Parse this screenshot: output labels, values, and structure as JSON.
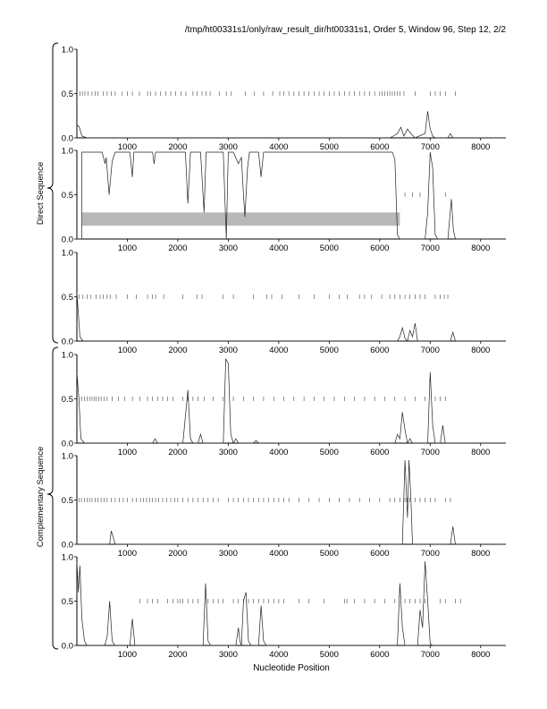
{
  "header": "/tmp/ht00331s1/only/raw_result_dir/ht00331s1, Order 5, Window 96, Step 12, 2/2",
  "group_labels": [
    "Direct Sequence",
    "Complementary Sequence"
  ],
  "xlabel": "Nucleotide Position",
  "colors": {
    "trace": "#222222",
    "ticks": "#444444",
    "shade": "#b8b8b8",
    "frame": "#000000"
  },
  "chart_data": [
    {
      "type": "line",
      "group": "Direct Sequence",
      "frame": 1,
      "xlim": [
        0,
        8500
      ],
      "ylim": [
        0,
        1
      ],
      "xticks": [
        1000,
        2000,
        3000,
        4000,
        5000,
        6000,
        7000,
        8000
      ],
      "yticks": [
        "0.0",
        "0.5",
        "1.0"
      ],
      "series": [
        {
          "points": [
            [
              0,
              0.15
            ],
            [
              50,
              0.12
            ],
            [
              100,
              0.02
            ],
            [
              200,
              0
            ],
            [
              6200,
              0
            ],
            [
              6300,
              0.03
            ],
            [
              6350,
              0.05
            ],
            [
              6420,
              0.12
            ],
            [
              6480,
              0.02
            ],
            [
              6550,
              0.1
            ],
            [
              6600,
              0.06
            ],
            [
              6650,
              0.03
            ],
            [
              6700,
              0
            ],
            [
              6900,
              0.05
            ],
            [
              6950,
              0.3
            ],
            [
              7000,
              0.1
            ],
            [
              7050,
              0.02
            ],
            [
              7100,
              0
            ],
            [
              7350,
              0
            ],
            [
              7400,
              0.05
            ],
            [
              7450,
              0
            ],
            [
              8500,
              0
            ]
          ]
        }
      ],
      "marker_positions": [
        60,
        110,
        160,
        220,
        300,
        360,
        420,
        520,
        600,
        680,
        760,
        900,
        1000,
        1100,
        1240,
        1400,
        1460,
        1560,
        1660,
        1760,
        1860,
        1960,
        2060,
        2160,
        2300,
        2380,
        2480,
        2560,
        2640,
        2820,
        2960,
        3060,
        3340,
        3520,
        3700,
        3880,
        4020,
        4100,
        4200,
        4300,
        4400,
        4500,
        4600,
        4700,
        4800,
        4900,
        5000,
        5100,
        5200,
        5300,
        5400,
        5500,
        5600,
        5700,
        5800,
        5900,
        6000,
        6050,
        6100,
        6150,
        6200,
        6250,
        6300,
        6350,
        6400,
        6480,
        6700,
        7000,
        7100,
        7200,
        7300,
        7500
      ]
    },
    {
      "type": "line",
      "group": "Direct Sequence",
      "frame": 2,
      "xlim": [
        0,
        8500
      ],
      "ylim": [
        0,
        1
      ],
      "xticks": [
        1000,
        2000,
        3000,
        4000,
        5000,
        6000,
        7000,
        8000
      ],
      "yticks": [
        "0.0",
        "0.5",
        "1.0"
      ],
      "shaded_band": {
        "x": [
          100,
          6400
        ],
        "y": [
          0.15,
          0.3
        ]
      },
      "series": [
        {
          "points": [
            [
              0,
              0
            ],
            [
              100,
              0
            ],
            [
              100,
              0.98
            ],
            [
              500,
              0.98
            ],
            [
              560,
              0.85
            ],
            [
              580,
              0.92
            ],
            [
              640,
              0.5
            ],
            [
              700,
              0.88
            ],
            [
              760,
              0.98
            ],
            [
              1050,
              0.98
            ],
            [
              1100,
              0.7
            ],
            [
              1130,
              0.98
            ],
            [
              1500,
              0.98
            ],
            [
              1530,
              0.85
            ],
            [
              1560,
              0.98
            ],
            [
              2150,
              0.98
            ],
            [
              2200,
              0.4
            ],
            [
              2250,
              0.98
            ],
            [
              2450,
              0.98
            ],
            [
              2520,
              0.3
            ],
            [
              2560,
              0.98
            ],
            [
              2900,
              0.98
            ],
            [
              2960,
              0
            ],
            [
              3000,
              0.98
            ],
            [
              3100,
              0.98
            ],
            [
              3200,
              0.85
            ],
            [
              3260,
              0.92
            ],
            [
              3300,
              0.5
            ],
            [
              3330,
              0.25
            ],
            [
              3380,
              0.8
            ],
            [
              3420,
              0.98
            ],
            [
              3600,
              0.98
            ],
            [
              3650,
              0.7
            ],
            [
              3700,
              0.98
            ],
            [
              6250,
              0.98
            ],
            [
              6300,
              0.9
            ],
            [
              6350,
              0.05
            ],
            [
              6400,
              0
            ],
            [
              6900,
              0
            ],
            [
              6950,
              0.3
            ],
            [
              7000,
              0.98
            ],
            [
              7050,
              0.8
            ],
            [
              7100,
              0.05
            ],
            [
              7150,
              0
            ],
            [
              7350,
              0
            ],
            [
              7420,
              0.45
            ],
            [
              7460,
              0.1
            ],
            [
              7500,
              0
            ],
            [
              8500,
              0
            ]
          ]
        }
      ],
      "marker_positions": [
        6500,
        6650,
        6800,
        7300
      ]
    },
    {
      "type": "line",
      "group": "Direct Sequence",
      "frame": 3,
      "xlim": [
        0,
        8500
      ],
      "ylim": [
        0,
        1
      ],
      "xticks": [
        1000,
        2000,
        3000,
        4000,
        5000,
        6000,
        7000,
        8000
      ],
      "yticks": [
        "0.0",
        "0.5",
        "1.0"
      ],
      "series": [
        {
          "points": [
            [
              0,
              0.55
            ],
            [
              30,
              0.3
            ],
            [
              60,
              0.05
            ],
            [
              120,
              0
            ],
            [
              6350,
              0
            ],
            [
              6400,
              0.05
            ],
            [
              6450,
              0.15
            ],
            [
              6500,
              0.03
            ],
            [
              6550,
              0
            ],
            [
              6600,
              0.12
            ],
            [
              6650,
              0.05
            ],
            [
              6700,
              0.2
            ],
            [
              6750,
              0
            ],
            [
              7400,
              0
            ],
            [
              7450,
              0.1
            ],
            [
              7500,
              0
            ],
            [
              8500,
              0
            ]
          ]
        }
      ],
      "marker_positions": [
        40,
        120,
        200,
        280,
        380,
        460,
        520,
        600,
        660,
        780,
        1000,
        1180,
        1400,
        1500,
        1560,
        1720,
        2100,
        2380,
        2480,
        2900,
        3100,
        3500,
        3760,
        3860,
        4060,
        4400,
        4700,
        5000,
        5200,
        5360,
        5600,
        5700,
        5840,
        6040,
        6200,
        6300,
        6400,
        6500,
        6600,
        6700,
        6800,
        6900,
        7100,
        7200,
        7280,
        7350
      ]
    },
    {
      "type": "line",
      "group": "Complementary Sequence",
      "frame": 4,
      "xlim": [
        0,
        8500
      ],
      "ylim": [
        0,
        1
      ],
      "xticks": [
        1000,
        2000,
        3000,
        4000,
        5000,
        6000,
        7000,
        8000
      ],
      "yticks": [
        "0.0",
        "0.5",
        "1.0"
      ],
      "series": [
        {
          "points": [
            [
              0,
              0.8
            ],
            [
              40,
              0.5
            ],
            [
              80,
              0.05
            ],
            [
              150,
              0
            ],
            [
              1500,
              0
            ],
            [
              1550,
              0.05
            ],
            [
              1600,
              0
            ],
            [
              2100,
              0
            ],
            [
              2150,
              0.3
            ],
            [
              2200,
              0.6
            ],
            [
              2250,
              0.05
            ],
            [
              2300,
              0
            ],
            [
              2400,
              0
            ],
            [
              2450,
              0.1
            ],
            [
              2500,
              0
            ],
            [
              2900,
              0
            ],
            [
              2950,
              0.95
            ],
            [
              3000,
              0.9
            ],
            [
              3050,
              0.1
            ],
            [
              3100,
              0
            ],
            [
              3150,
              0.05
            ],
            [
              3200,
              0
            ],
            [
              3500,
              0
            ],
            [
              3550,
              0.03
            ],
            [
              3600,
              0
            ],
            [
              6300,
              0
            ],
            [
              6350,
              0.1
            ],
            [
              6400,
              0.05
            ],
            [
              6450,
              0.35
            ],
            [
              6500,
              0.15
            ],
            [
              6550,
              0
            ],
            [
              6600,
              0.05
            ],
            [
              6650,
              0
            ],
            [
              6950,
              0
            ],
            [
              7000,
              0.8
            ],
            [
              7050,
              0.2
            ],
            [
              7100,
              0
            ],
            [
              7200,
              0
            ],
            [
              7250,
              0.2
            ],
            [
              7300,
              0
            ],
            [
              8500,
              0
            ]
          ]
        }
      ],
      "marker_positions": [
        100,
        150,
        200,
        260,
        300,
        340,
        380,
        430,
        480,
        540,
        600,
        700,
        820,
        950,
        1100,
        1250,
        1400,
        1500,
        1600,
        1700,
        1800,
        1900,
        2100,
        2200,
        2300,
        2400,
        2520,
        2700,
        2900,
        3100,
        3300,
        3500,
        3700,
        3900,
        4100,
        4300,
        4500,
        4700,
        4900,
        5100,
        5300,
        5500,
        5700,
        5900,
        6100,
        6300,
        6500,
        6700,
        6900,
        7100,
        7200,
        7300
      ]
    },
    {
      "type": "line",
      "group": "Complementary Sequence",
      "frame": 5,
      "xlim": [
        0,
        8500
      ],
      "ylim": [
        0,
        1
      ],
      "xticks": [
        1000,
        2000,
        3000,
        4000,
        5000,
        6000,
        7000,
        8000
      ],
      "yticks": [
        "0.0",
        "0.5",
        "1.0"
      ],
      "series": [
        {
          "points": [
            [
              0,
              0
            ],
            [
              650,
              0
            ],
            [
              680,
              0.15
            ],
            [
              720,
              0.08
            ],
            [
              760,
              0
            ],
            [
              6450,
              0
            ],
            [
              6500,
              0.95
            ],
            [
              6550,
              0.3
            ],
            [
              6580,
              0.95
            ],
            [
              6620,
              0.5
            ],
            [
              6650,
              0
            ],
            [
              7400,
              0
            ],
            [
              7450,
              0.2
            ],
            [
              7500,
              0
            ],
            [
              8500,
              0
            ]
          ]
        }
      ],
      "marker_positions": [
        40,
        90,
        150,
        200,
        250,
        300,
        360,
        420,
        480,
        540,
        600,
        680,
        760,
        840,
        920,
        1000,
        1100,
        1180,
        1260,
        1320,
        1380,
        1440,
        1500,
        1560,
        1620,
        1700,
        1780,
        1860,
        1940,
        2000,
        2100,
        2200,
        2300,
        2400,
        2500,
        2600,
        2700,
        2800,
        3000,
        3100,
        3200,
        3300,
        3400,
        3500,
        3600,
        3700,
        3800,
        3900,
        4000,
        4100,
        4200,
        4400,
        4600,
        4800,
        5000,
        5200,
        5400,
        5600,
        5800,
        6000,
        6200,
        6300,
        6400,
        6500,
        6550,
        6600,
        6700,
        6800,
        6900,
        7000,
        7100,
        7300,
        7400
      ]
    },
    {
      "type": "line",
      "group": "Complementary Sequence",
      "frame": 6,
      "xlim": [
        0,
        8500
      ],
      "ylim": [
        0,
        1
      ],
      "xticks": [
        1000,
        2000,
        3000,
        4000,
        5000,
        6000,
        7000,
        8000
      ],
      "yticks": [
        "0.0",
        "0.5",
        "1.0"
      ],
      "series": [
        {
          "points": [
            [
              0,
              0.95
            ],
            [
              30,
              0.6
            ],
            [
              60,
              0.9
            ],
            [
              100,
              0.3
            ],
            [
              150,
              0.05
            ],
            [
              200,
              0
            ],
            [
              550,
              0
            ],
            [
              600,
              0.1
            ],
            [
              650,
              0.5
            ],
            [
              700,
              0.05
            ],
            [
              750,
              0
            ],
            [
              1050,
              0
            ],
            [
              1100,
              0.3
            ],
            [
              1150,
              0
            ],
            [
              2500,
              0
            ],
            [
              2550,
              0.7
            ],
            [
              2600,
              0.05
            ],
            [
              2650,
              0
            ],
            [
              3150,
              0
            ],
            [
              3200,
              0.2
            ],
            [
              3230,
              0.05
            ],
            [
              3260,
              0
            ],
            [
              3300,
              0.5
            ],
            [
              3350,
              0.6
            ],
            [
              3400,
              0.05
            ],
            [
              3450,
              0
            ],
            [
              3600,
              0
            ],
            [
              3650,
              0.45
            ],
            [
              3700,
              0.05
            ],
            [
              3750,
              0
            ],
            [
              6350,
              0
            ],
            [
              6400,
              0.7
            ],
            [
              6450,
              0.2
            ],
            [
              6500,
              0
            ],
            [
              6750,
              0
            ],
            [
              6800,
              0.4
            ],
            [
              6850,
              0.2
            ],
            [
              6900,
              0.95
            ],
            [
              6950,
              0.5
            ],
            [
              7000,
              0.02
            ],
            [
              7050,
              0
            ],
            [
              8500,
              0
            ]
          ]
        }
      ],
      "marker_positions": [
        1250,
        1400,
        1500,
        1600,
        1800,
        1900,
        2000,
        2050,
        2100,
        2200,
        2300,
        2400,
        2600,
        2700,
        2800,
        2900,
        3100,
        3200,
        3300,
        3400,
        3500,
        3600,
        3700,
        3800,
        3900,
        4000,
        4100,
        4400,
        4600,
        4900,
        5300,
        5350,
        5500,
        5700,
        5900,
        6100,
        6300,
        6500,
        6600,
        6700,
        6800,
        6900,
        7200,
        7300,
        7500,
        7600
      ]
    }
  ]
}
